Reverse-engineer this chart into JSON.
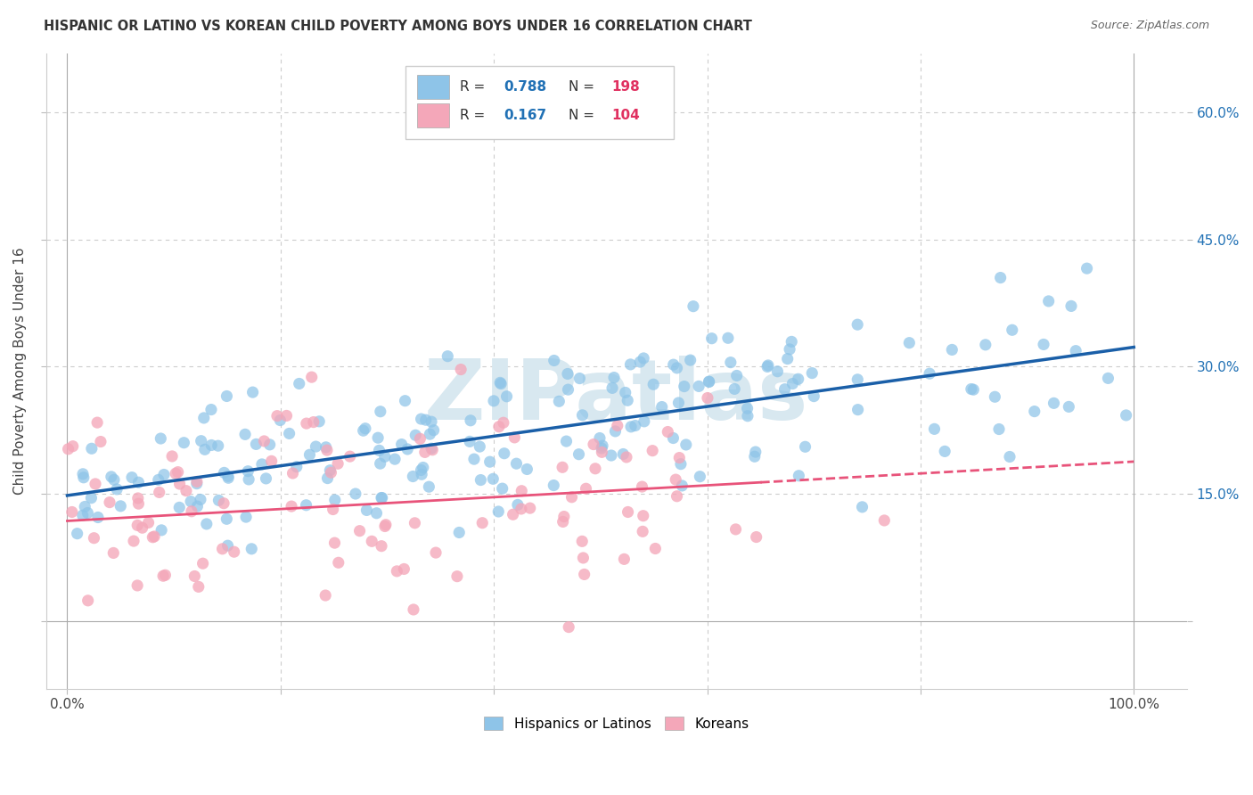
{
  "title": "HISPANIC OR LATINO VS KOREAN CHILD POVERTY AMONG BOYS UNDER 16 CORRELATION CHART",
  "source": "Source: ZipAtlas.com",
  "ylabel": "Child Poverty Among Boys Under 16",
  "x_ticks": [
    0.0,
    0.2,
    0.4,
    0.6,
    0.8,
    1.0
  ],
  "y_ticks": [
    0.0,
    0.15,
    0.3,
    0.45,
    0.6
  ],
  "right_y_labels": [
    "",
    "15.0%",
    "30.0%",
    "45.0%",
    "60.0%"
  ],
  "xlim": [
    -0.02,
    1.05
  ],
  "ylim": [
    -0.08,
    0.67
  ],
  "color_blue": "#8ec4e8",
  "color_pink": "#f4a7b9",
  "color_blue_line": "#1a5fa8",
  "color_pink_line": "#e8537a",
  "watermark_text": "ZIPatlas",
  "watermark_color": "#d8e8f0",
  "background_color": "#ffffff",
  "grid_color": "#cccccc",
  "hispanic_label": "Hispanics or Latinos",
  "korean_label": "Koreans",
  "r_color": "#2171b5",
  "n_color": "#e03060",
  "hispanic_slope": 0.175,
  "hispanic_intercept": 0.148,
  "korean_slope": 0.07,
  "korean_intercept": 0.118
}
